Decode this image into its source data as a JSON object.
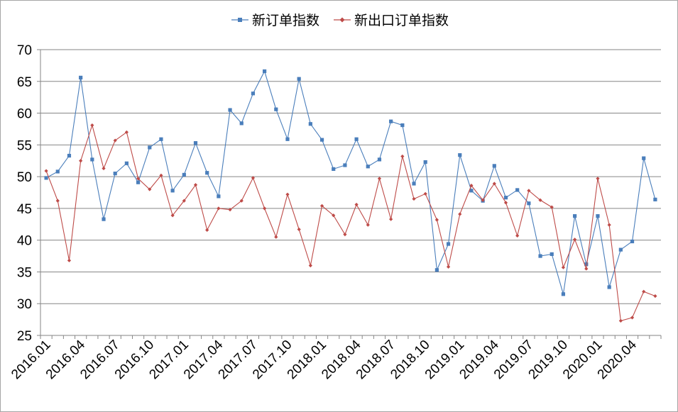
{
  "chart_data": {
    "type": "line",
    "title": "",
    "xlabel": "",
    "ylabel": "",
    "ylim": [
      25,
      70
    ],
    "yticks": [
      25,
      30,
      35,
      40,
      45,
      50,
      55,
      60,
      65,
      70
    ],
    "grid": true,
    "legend_position": "top-center",
    "x": [
      "2016.01",
      "2016.02",
      "2016.03",
      "2016.04",
      "2016.05",
      "2016.06",
      "2016.07",
      "2016.08",
      "2016.09",
      "2016.10",
      "2016.11",
      "2016.12",
      "2017.01",
      "2017.02",
      "2017.03",
      "2017.04",
      "2017.05",
      "2017.06",
      "2017.07",
      "2017.08",
      "2017.09",
      "2017.10",
      "2017.11",
      "2017.12",
      "2018.01",
      "2018.02",
      "2018.03",
      "2018.04",
      "2018.05",
      "2018.06",
      "2018.07",
      "2018.08",
      "2018.09",
      "2018.10",
      "2018.11",
      "2018.12",
      "2019.01",
      "2019.02",
      "2019.03",
      "2019.04",
      "2019.05",
      "2019.06",
      "2019.07",
      "2019.08",
      "2019.09",
      "2019.10",
      "2019.11",
      "2019.12",
      "2020.01",
      "2020.02",
      "2020.03",
      "2020.04",
      "2020.05",
      "2020.06"
    ],
    "x_tick_labels": [
      "2016.01",
      "2016.04",
      "2016.07",
      "2016.10",
      "2017.01",
      "2017.04",
      "2017.07",
      "2017.10",
      "2018.01",
      "2018.04",
      "2018.07",
      "2018.10",
      "2019.01",
      "2019.04",
      "2019.07",
      "2019.10",
      "2020.01",
      "2020.04"
    ],
    "series": [
      {
        "name": "新订单指数",
        "color": "#4a7ebb",
        "marker": "square",
        "values": [
          49.8,
          50.8,
          53.3,
          65.6,
          52.7,
          43.3,
          50.5,
          52.1,
          49.1,
          54.6,
          55.9,
          47.8,
          50.3,
          55.3,
          50.6,
          46.9,
          60.5,
          58.4,
          63.1,
          66.6,
          60.6,
          55.9,
          65.4,
          58.3,
          55.8,
          51.2,
          51.8,
          55.9,
          51.6,
          52.7,
          58.7,
          58.1,
          48.9,
          52.3,
          35.3,
          39.4,
          53.4,
          47.8,
          46.2,
          51.7,
          46.7,
          47.9,
          45.8,
          37.5,
          37.8,
          31.5,
          43.8,
          36.2,
          43.8,
          32.6,
          38.5,
          39.8,
          52.9,
          46.4
        ]
      },
      {
        "name": "新出口订单指数",
        "color": "#be4b48",
        "marker": "diamond",
        "values": [
          50.9,
          46.2,
          36.8,
          52.5,
          58.1,
          51.3,
          55.7,
          57.0,
          49.7,
          48.0,
          50.2,
          43.9,
          46.2,
          48.7,
          41.6,
          45.0,
          44.8,
          46.2,
          49.8,
          45.0,
          40.5,
          47.2,
          41.7,
          36.0,
          45.4,
          43.9,
          40.9,
          45.6,
          42.4,
          49.7,
          43.3,
          53.2,
          46.5,
          47.3,
          43.2,
          35.8,
          44.1,
          48.6,
          46.3,
          48.9,
          45.9,
          40.7,
          47.8,
          46.3,
          45.2,
          35.7,
          40.1,
          35.5,
          49.7,
          42.4,
          27.3,
          27.8,
          31.9,
          31.2
        ]
      }
    ]
  }
}
